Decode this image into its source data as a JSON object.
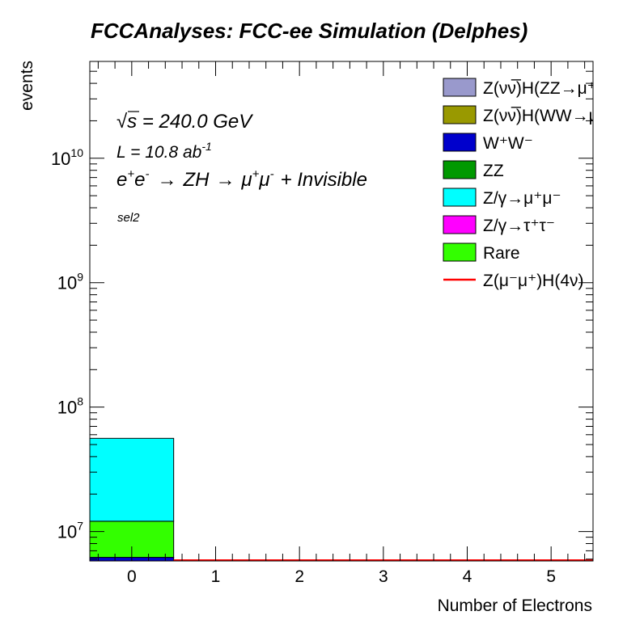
{
  "chart_data": {
    "type": "bar",
    "stacked": true,
    "title": "FCCAnalyses: FCC-ee Simulation (Delphes)",
    "xlabel": "Number of Electrons",
    "ylabel": "events",
    "y_scale": "log",
    "xlim": [
      -0.5,
      5.5
    ],
    "ylim": [
      5800000,
      60000000000
    ],
    "x_ticks": [
      "0",
      "1",
      "2",
      "3",
      "4",
      "5"
    ],
    "y_ticks": [
      {
        "value": 10000000,
        "base": "10",
        "exp": "7"
      },
      {
        "value": 100000000,
        "base": "10",
        "exp": "8"
      },
      {
        "value": 1000000000,
        "base": "10",
        "exp": "9"
      },
      {
        "value": 10000000000,
        "base": "10",
        "exp": "10"
      }
    ],
    "annotations": {
      "sqrt_s_symbol": "√",
      "sqrt_s_var": "s",
      "sqrt_s_value": " = 240.0 GeV",
      "lumi_main": "L = 10.8 ab",
      "lumi_sup": "-1",
      "process_e1": "e",
      "process_e1_sup": "+",
      "process_e2": "e",
      "process_e2_sup": "-",
      "process_arrow1": "→",
      "process_zh": "ZH",
      "process_arrow2": "→",
      "process_mu1": "μ",
      "process_mu1_sup": "+",
      "process_mu2": "μ",
      "process_mu2_sup": "-",
      "process_tail": "+ Invisible",
      "selection": "sel2"
    },
    "legend": {
      "placement": "top-right",
      "entries": [
        {
          "label": "Z(νν̅)H(ZZ→μ⁺μ⁻ν⁺ν⁻)",
          "color": "#9999cc",
          "style": "fill"
        },
        {
          "label": "Z(νν̅)H(WW→μ⁺νμ⁻ν)",
          "color": "#999900",
          "style": "fill"
        },
        {
          "label": "W⁺W⁻",
          "color": "#0000cc",
          "style": "fill"
        },
        {
          "label": "ZZ",
          "color": "#009900",
          "style": "fill"
        },
        {
          "label": "Z/γ→μ⁺μ⁻",
          "color": "#00ffff",
          "style": "fill"
        },
        {
          "label": "Z/γ→τ⁺τ⁻",
          "color": "#ff00ff",
          "style": "fill"
        },
        {
          "label": "Rare",
          "color": "#33ff00",
          "style": "fill"
        },
        {
          "label": "Z(μ⁻μ⁺)H(4ν)",
          "color": "#ff0000",
          "style": "line"
        }
      ]
    },
    "categories": [
      0,
      1,
      2,
      3,
      4,
      5
    ],
    "series": [
      {
        "name": "W⁺W⁻",
        "color": "#0000cc",
        "values": [
          6200000,
          0,
          0,
          0,
          0,
          0
        ]
      },
      {
        "name": "Rare",
        "color": "#33ff00",
        "values": [
          5900000,
          0,
          0,
          0,
          0,
          0
        ]
      },
      {
        "name": "Z/γ→μ⁺μ⁻",
        "color": "#00ffff",
        "values": [
          44000000,
          0,
          0,
          0,
          0,
          0
        ]
      }
    ],
    "signal": {
      "name": "Z(μ⁻μ⁺)H(4ν)",
      "color": "#ff0000",
      "values": [
        5500,
        0,
        0,
        0,
        0,
        0
      ]
    }
  }
}
